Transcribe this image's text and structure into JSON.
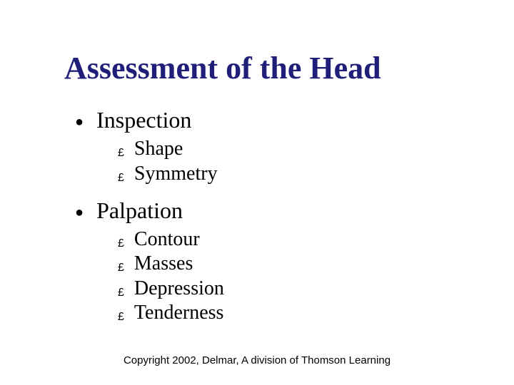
{
  "title": "Assessment of the Head",
  "title_color": "#1f1f7a",
  "bullet1_glyph": "●",
  "bullet2_glyph": "£",
  "items": [
    {
      "label": "Inspection",
      "sub": [
        {
          "label": "Shape"
        },
        {
          "label": "Symmetry"
        }
      ]
    },
    {
      "label": "Palpation",
      "sub": [
        {
          "label": "Contour"
        },
        {
          "label": "Masses"
        },
        {
          "label": "Depression"
        },
        {
          "label": "Tenderness"
        }
      ]
    }
  ],
  "footer": "Copyright 2002, Delmar, A division of Thomson Learning"
}
